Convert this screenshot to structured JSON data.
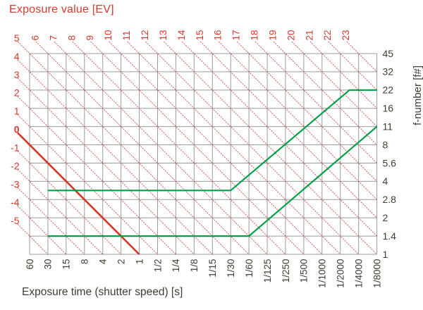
{
  "chart_data": {
    "type": "line",
    "title": "Exposure value [EV]",
    "xlabel": "Exposure time (shutter speed) [s]",
    "ylabel_right": "f-number [f#]",
    "grid": true,
    "x_ticks": [
      "60",
      "30",
      "15",
      "8",
      "4",
      "2",
      "1",
      "1/2",
      "1/4",
      "1/8",
      "1/15",
      "1/30",
      "1/60",
      "1/125",
      "1/250",
      "1/500",
      "1/1000",
      "1/2000",
      "1/4000",
      "1/8000"
    ],
    "f_number_ticks": [
      "45",
      "32",
      "22",
      "16",
      "11",
      "8",
      "5.6",
      "4",
      "2.8",
      "2",
      "1.4",
      "1"
    ],
    "ev_top_ticks": [
      "6",
      "7",
      "8",
      "9",
      "10",
      "11",
      "12",
      "13",
      "14",
      "15",
      "16",
      "17",
      "18",
      "19",
      "20",
      "21",
      "22",
      "23"
    ],
    "ev_left_ticks": [
      "5",
      "4",
      "3",
      "2",
      "1",
      "0",
      "-1",
      "-2",
      "-3",
      "-4",
      "-5"
    ],
    "ev_bold_label": "0",
    "units_note": "series points are [x-tick-index (0 = 60 s), f-stops above f/1 (0 = f/1, 1 = f/1.4, ... 11 = f/45)]",
    "series": [
      {
        "name": "program-line-upper",
        "color": "#00a04a",
        "points": [
          [
            1,
            3.5
          ],
          [
            11,
            3.5
          ],
          [
            17.5,
            9
          ],
          [
            19,
            9
          ]
        ]
      },
      {
        "name": "program-line-lower",
        "color": "#00a04a",
        "points": [
          [
            1,
            1
          ],
          [
            12,
            1
          ],
          [
            19,
            7
          ]
        ]
      }
    ],
    "colors": {
      "ev_text_red": "#d6392e",
      "ev_line_red": "#c9463c",
      "ev_bold_red": "#d93528",
      "program_green": "#00a04a",
      "grid_gray": "#9b9b9b",
      "text_dark": "#3e3e33",
      "background": "#ffffff"
    }
  }
}
